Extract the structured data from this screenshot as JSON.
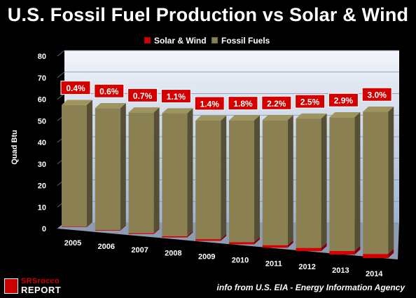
{
  "chart_data": {
    "type": "bar",
    "title": "U.S. Fossil Fuel Production vs Solar & Wind",
    "ylabel": "Quad Btu",
    "xlabel": "",
    "ylim": [
      0,
      80
    ],
    "yticks": [
      "0",
      "10",
      "20",
      "30",
      "40",
      "50",
      "60",
      "70",
      "80"
    ],
    "categories": [
      "2005",
      "2006",
      "2007",
      "2008",
      "2009",
      "2010",
      "2011",
      "2012",
      "2013",
      "2014"
    ],
    "series": [
      {
        "name": "Solar & Wind",
        "color": "#d40000",
        "values": [
          0.2,
          0.3,
          0.4,
          0.6,
          0.8,
          1.0,
          1.2,
          1.5,
          1.7,
          1.9
        ]
      },
      {
        "name": "Fossil Fuels",
        "color": "#8a8052",
        "values": [
          56.5,
          56.5,
          56.0,
          57.0,
          55.0,
          56.5,
          58.0,
          60.0,
          62.0,
          66.0
        ]
      }
    ],
    "data_labels": [
      "0.4%",
      "0.6%",
      "0.7%",
      "1.1%",
      "1.4%",
      "1.8%",
      "2.2%",
      "2.5%",
      "2.9%",
      "3.0%"
    ],
    "legend_position": "top-center",
    "grid": true,
    "style": "3d-stacked-columns"
  },
  "footer": {
    "source": "info from U.S. EIA - Energy Information Agency",
    "logo_top": "SRSrocco",
    "logo_bottom": "REPORT"
  }
}
